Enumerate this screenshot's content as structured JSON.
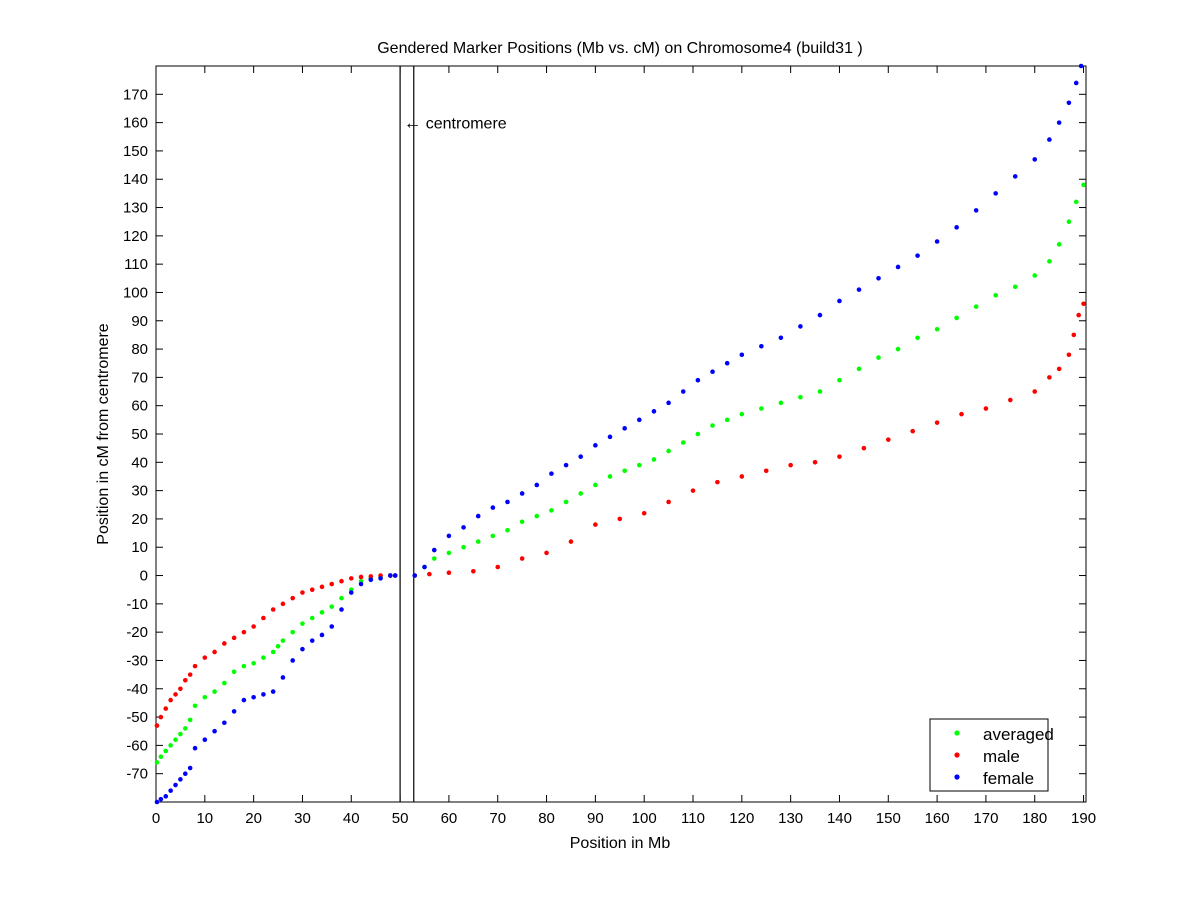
{
  "chart_data": {
    "type": "scatter",
    "title": "Gendered Marker Positions (Mb vs. cM) on Chromosome4 (build31 )",
    "xlabel": "Position in Mb",
    "ylabel": "Position in cM from centromere",
    "xlim": [
      0,
      190.5
    ],
    "ylim": [
      -80,
      180
    ],
    "xticks": [
      0,
      10,
      20,
      30,
      40,
      50,
      60,
      70,
      80,
      90,
      100,
      110,
      120,
      130,
      140,
      150,
      160,
      170,
      180,
      190
    ],
    "yticks": [
      -70,
      -60,
      -50,
      -40,
      -30,
      -20,
      -10,
      0,
      10,
      20,
      30,
      40,
      50,
      60,
      70,
      80,
      90,
      100,
      110,
      120,
      130,
      140,
      150,
      160,
      170
    ],
    "grid": false,
    "legend_position": "bottom-right",
    "centromere": {
      "label": "centromere",
      "arrow": "←",
      "boundaries_mb": [
        50,
        52.8
      ]
    },
    "series": [
      {
        "name": "averaged",
        "color": "#00ff00",
        "x": [
          0.2,
          1,
          2,
          3,
          4,
          5,
          6,
          7,
          8,
          10,
          12,
          14,
          16,
          18,
          20,
          22,
          24,
          25,
          26,
          28,
          30,
          32,
          34,
          36,
          38,
          40,
          42,
          44,
          46,
          48,
          49,
          53,
          55,
          57,
          60,
          63,
          66,
          69,
          72,
          75,
          78,
          81,
          84,
          87,
          90,
          93,
          96,
          99,
          102,
          105,
          108,
          111,
          114,
          117,
          120,
          124,
          128,
          132,
          136,
          140,
          144,
          148,
          152,
          156,
          160,
          164,
          168,
          172,
          176,
          180,
          183,
          185,
          187,
          188.5,
          190
        ],
        "y": [
          -66,
          -64,
          -62,
          -60,
          -58,
          -56,
          -54,
          -51,
          -46,
          -43,
          -41,
          -38,
          -34,
          -32,
          -31,
          -29,
          -27,
          -25,
          -23,
          -20,
          -17,
          -15,
          -13,
          -11,
          -8,
          -5,
          -2,
          -1,
          -0.5,
          0,
          0,
          0,
          3,
          6,
          8,
          10,
          12,
          14,
          16,
          19,
          21,
          23,
          26,
          29,
          32,
          35,
          37,
          39,
          41,
          44,
          47,
          50,
          53,
          55,
          57,
          59,
          61,
          63,
          65,
          69,
          73,
          77,
          80,
          84,
          87,
          91,
          95,
          99,
          102,
          106,
          111,
          117,
          125,
          132,
          138
        ]
      },
      {
        "name": "male",
        "color": "#ff0000",
        "x": [
          0.2,
          1,
          2,
          3,
          4,
          5,
          6,
          7,
          8,
          10,
          12,
          14,
          16,
          18,
          20,
          22,
          24,
          26,
          28,
          30,
          32,
          34,
          36,
          38,
          40,
          42,
          44,
          46,
          48,
          49,
          53,
          56,
          60,
          65,
          70,
          75,
          80,
          85,
          90,
          95,
          100,
          105,
          110,
          115,
          120,
          125,
          130,
          135,
          140,
          145,
          150,
          155,
          160,
          165,
          170,
          175,
          180,
          183,
          185,
          187,
          188,
          189,
          190
        ],
        "y": [
          -53,
          -50,
          -47,
          -44,
          -42,
          -40,
          -37,
          -35,
          -32,
          -29,
          -27,
          -24,
          -22,
          -20,
          -18,
          -15,
          -12,
          -10,
          -8,
          -6,
          -5,
          -4,
          -3,
          -2,
          -1,
          -0.5,
          -0.3,
          0,
          0,
          0,
          0,
          0.5,
          1,
          1.5,
          3,
          6,
          8,
          12,
          18,
          20,
          22,
          26,
          30,
          33,
          35,
          37,
          39,
          40,
          42,
          45,
          48,
          51,
          54,
          57,
          59,
          62,
          65,
          70,
          73,
          78,
          85,
          92,
          96
        ]
      },
      {
        "name": "female",
        "color": "#0000ff",
        "x": [
          0.2,
          1,
          2,
          3,
          4,
          5,
          6,
          7,
          8,
          10,
          12,
          14,
          16,
          18,
          20,
          22,
          24,
          26,
          28,
          30,
          32,
          34,
          36,
          38,
          40,
          42,
          44,
          46,
          48,
          49,
          53,
          55,
          57,
          60,
          63,
          66,
          69,
          72,
          75,
          78,
          81,
          84,
          87,
          90,
          93,
          96,
          99,
          102,
          105,
          108,
          111,
          114,
          117,
          120,
          124,
          128,
          132,
          136,
          140,
          144,
          148,
          152,
          156,
          160,
          164,
          168,
          172,
          176,
          180,
          183,
          185,
          187,
          188.5,
          189.5
        ],
        "y": [
          -80,
          -79,
          -78,
          -76,
          -74,
          -72,
          -70,
          -68,
          -61,
          -58,
          -55,
          -52,
          -48,
          -44,
          -43,
          -42,
          -41,
          -36,
          -30,
          -26,
          -23,
          -21,
          -18,
          -12,
          -6,
          -3,
          -1.5,
          -1,
          0,
          0,
          0,
          3,
          9,
          14,
          17,
          21,
          24,
          26,
          29,
          32,
          36,
          39,
          42,
          46,
          49,
          52,
          55,
          58,
          61,
          65,
          69,
          72,
          75,
          78,
          81,
          84,
          88,
          92,
          97,
          101,
          105,
          109,
          113,
          118,
          123,
          129,
          135,
          141,
          147,
          154,
          160,
          167,
          174,
          180
        ]
      }
    ]
  }
}
